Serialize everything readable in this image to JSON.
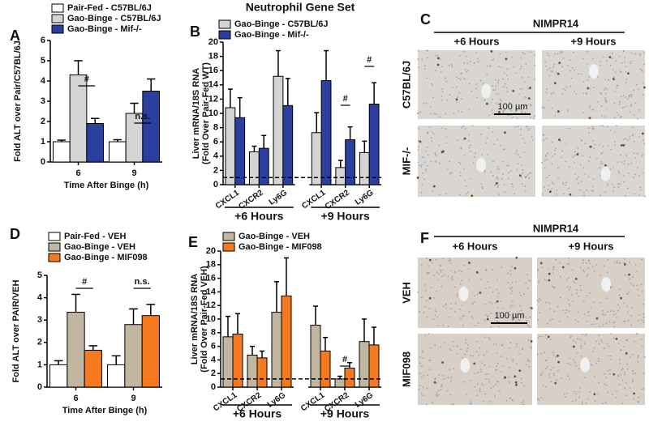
{
  "chart_data": [
    {
      "type": "bar",
      "panel_label": "A",
      "x_label": "Time After Binge (h)",
      "y_label": [
        "Fold ALT over Pair/C57BL/6J"
      ],
      "categories": [
        "6",
        "9"
      ],
      "series": [
        {
          "name": "Pair-Fed - C57BL/6J",
          "color": "#ffffff",
          "values": [
            1.0,
            1.0
          ],
          "errors": [
            0.08,
            0.1
          ]
        },
        {
          "name": "Gao-Binge - C57BL/6J",
          "color": "#d4d4d4",
          "values": [
            4.3,
            2.4
          ],
          "errors": [
            0.7,
            0.5
          ]
        },
        {
          "name": "Gao-Binge - Mif-/-",
          "color": "#2b3f9e",
          "values": [
            1.9,
            3.5
          ],
          "errors": [
            0.25,
            0.6
          ]
        }
      ],
      "ylim": [
        0,
        6
      ],
      "yticks": [
        0,
        1,
        2,
        3,
        4,
        5,
        6
      ],
      "annotations": [
        "#",
        "n.s."
      ]
    },
    {
      "type": "bar",
      "panel_label": "B",
      "title": "Neutrophil Gene Set",
      "y_label": [
        "Liver mRNA/18S RNA",
        "(Fold Over Pair-Fed WT)"
      ],
      "categories": [
        "CXCL1",
        "CXCR2",
        "Ly6G",
        "CXCL1",
        "CXCR2",
        "Ly6G"
      ],
      "group_labels": [
        "+6 Hours",
        "+9 Hours"
      ],
      "series": [
        {
          "name": "Gao-Binge - C57BL/6J",
          "color": "#d4d4d4",
          "values": [
            10.8,
            4.6,
            15.2,
            7.3,
            2.4,
            4.5
          ],
          "errors": [
            2.6,
            0.8,
            3.6,
            2.8,
            1.0,
            1.6
          ]
        },
        {
          "name": "Gao-Binge - Mif-/-",
          "color": "#2b3f9e",
          "values": [
            9.4,
            5.1,
            11.1,
            14.6,
            6.3,
            11.3
          ],
          "errors": [
            2.8,
            1.8,
            3.8,
            4.2,
            1.8,
            3.0
          ]
        }
      ],
      "ylim": [
        0,
        20
      ],
      "yticks": [
        0,
        2,
        4,
        6,
        8,
        10,
        12,
        14,
        16,
        18,
        20
      ],
      "reference_line": 1,
      "annotations": [
        "#",
        "#"
      ]
    },
    {
      "type": "bar",
      "panel_label": "D",
      "x_label": "Time After Binge (h)",
      "y_label": [
        "Fold ALT over PAIR/VEH"
      ],
      "categories": [
        "6",
        "9"
      ],
      "series": [
        {
          "name": "Pair-Fed - VEH",
          "color": "#ffffff",
          "values": [
            1.0,
            1.0
          ],
          "errors": [
            0.18,
            0.4
          ]
        },
        {
          "name": "Gao-Binge - VEH",
          "color": "#c2b6a0",
          "values": [
            3.35,
            2.8
          ],
          "errors": [
            0.8,
            0.7
          ]
        },
        {
          "name": "Gao-Binge - MIF098",
          "color": "#f47920",
          "values": [
            1.65,
            3.2
          ],
          "errors": [
            0.2,
            0.5
          ]
        }
      ],
      "ylim": [
        0,
        5
      ],
      "yticks": [
        0,
        1,
        2,
        3,
        4,
        5
      ],
      "annotations": [
        "#",
        "n.s."
      ]
    },
    {
      "type": "bar",
      "panel_label": "E",
      "y_label": [
        "Liver mRNA/18S RNA",
        "(Fold Over Pair-Fed VEH)"
      ],
      "categories": [
        "CXCL1",
        "CXCR2",
        "Ly6G",
        "CXCL1",
        "CXCR2",
        "Ly6G"
      ],
      "group_labels": [
        "+6 Hours",
        "+9 Hours"
      ],
      "series": [
        {
          "name": "Gao-Binge - VEH",
          "color": "#c2b6a0",
          "values": [
            7.4,
            4.7,
            11.0,
            9.1,
            1.2,
            6.7
          ],
          "errors": [
            3.0,
            1.3,
            4.5,
            2.8,
            0.4,
            3.3
          ]
        },
        {
          "name": "Gao-Binge - MIF098",
          "color": "#f47920",
          "values": [
            7.8,
            4.3,
            13.4,
            5.3,
            2.8,
            6.2
          ],
          "errors": [
            3.0,
            1.0,
            5.6,
            2.0,
            0.8,
            2.6
          ]
        }
      ],
      "ylim": [
        0,
        20
      ],
      "yticks": [
        0,
        2,
        4,
        6,
        8,
        10,
        12,
        14,
        16,
        18,
        20
      ],
      "reference_line": 1.2,
      "annotations": [
        "#"
      ]
    }
  ],
  "image_panels": [
    {
      "panel_label": "C",
      "title": "NIMPR14",
      "columns": [
        "+6 Hours",
        "+9 Hours"
      ],
      "rows": [
        "C57BL/6J",
        "MIF-/-"
      ],
      "scale_bar": "100 µm"
    },
    {
      "panel_label": "F",
      "title": "NIMPR14",
      "columns": [
        "+6 Hours",
        "+9 Hours"
      ],
      "rows": [
        "VEH",
        "MIF098"
      ],
      "scale_bar": "100 µm"
    }
  ]
}
